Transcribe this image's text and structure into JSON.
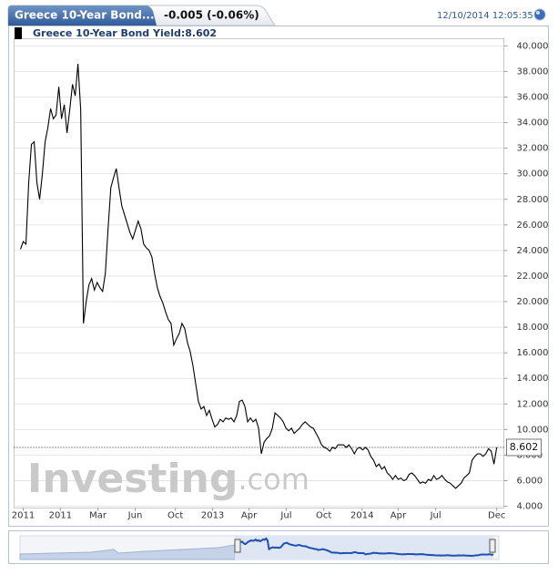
{
  "header": {
    "title": "Greece 10-Year Bond...",
    "change": "-0.005 (-0.06%)",
    "timestamp": "12/10/2014 12:05:35"
  },
  "watermark": {
    "brand": "Investing",
    "suffix": ".com"
  },
  "chart_data": {
    "type": "line",
    "series": [
      {
        "name": "Greece 10-Year Bond Yield:8.602",
        "color": "#000000",
        "values": [
          24.1,
          24.7,
          24.5,
          29.3,
          32.3,
          32.5,
          29.3,
          28.0,
          30.0,
          32.5,
          33.6,
          35.1,
          34.3,
          34.6,
          36.8,
          34.3,
          35.4,
          33.2,
          35.0,
          37.0,
          36.1,
          38.6,
          35.0,
          18.3,
          20.0,
          21.3,
          21.8,
          20.9,
          21.5,
          21.1,
          20.8,
          22.2,
          25.7,
          28.9,
          29.7,
          30.4,
          28.9,
          27.5,
          26.8,
          26.1,
          25.4,
          24.9,
          25.6,
          26.3,
          25.7,
          24.5,
          24.2,
          24.0,
          23.5,
          22.2,
          21.1,
          20.4,
          19.9,
          19.2,
          18.6,
          18.3,
          16.6,
          17.1,
          17.5,
          18.3,
          17.9,
          16.8,
          16.1,
          15.0,
          13.6,
          12.2,
          11.6,
          11.8,
          11.1,
          11.5,
          10.8,
          10.2,
          10.4,
          10.8,
          10.6,
          10.9,
          10.8,
          10.9,
          10.6,
          11.1,
          12.2,
          12.3,
          11.8,
          10.6,
          10.9,
          10.6,
          10.8,
          10.1,
          8.1,
          9.0,
          9.3,
          9.5,
          10.1,
          11.3,
          11.1,
          10.9,
          10.6,
          10.1,
          9.9,
          10.1,
          9.7,
          9.9,
          10.1,
          10.4,
          10.6,
          10.4,
          10.2,
          10.1,
          9.7,
          9.3,
          8.8,
          8.6,
          8.5,
          8.3,
          8.6,
          8.5,
          8.8,
          8.8,
          8.8,
          8.6,
          8.8,
          8.5,
          8.1,
          8.5,
          8.6,
          8.4,
          8.6,
          8.4,
          7.9,
          7.6,
          7.1,
          7.3,
          6.9,
          7.1,
          6.6,
          6.4,
          6.1,
          6.4,
          6.1,
          6.2,
          6.0,
          6.1,
          6.5,
          6.6,
          6.4,
          6.1,
          5.8,
          5.9,
          5.8,
          6.1,
          6.0,
          6.4,
          6.1,
          6.2,
          6.4,
          6.1,
          5.9,
          5.8,
          5.6,
          5.4,
          5.6,
          5.8,
          6.2,
          6.4,
          6.6,
          7.6,
          7.9,
          8.1,
          8.1,
          7.9,
          8.1,
          8.5,
          8.3,
          7.3,
          8.602
        ]
      }
    ],
    "xlim": [
      -2.33,
      176.6
    ],
    "xticks": [
      {
        "value": 1,
        "label": "2011"
      },
      {
        "value": 14.6,
        "label": "2011"
      },
      {
        "value": 28.3,
        "label": "Mar"
      },
      {
        "value": 41.9,
        "label": "Jun"
      },
      {
        "value": 56.6,
        "label": "Oct"
      },
      {
        "value": 70.2,
        "label": "2013"
      },
      {
        "value": 83.5,
        "label": "Apr"
      },
      {
        "value": 97.1,
        "label": "Jul"
      },
      {
        "value": 110.8,
        "label": "Oct"
      },
      {
        "value": 124.8,
        "label": "2014"
      },
      {
        "value": 138.0,
        "label": "Apr"
      },
      {
        "value": 151.7,
        "label": "Jul"
      },
      {
        "value": 174,
        "label": "Dec"
      }
    ],
    "ylim": [
      3.86,
      40.56
    ],
    "yticks": [
      {
        "value": 4,
        "label": "4.000"
      },
      {
        "value": 6,
        "label": "6.000"
      },
      {
        "value": 8,
        "label": "8.000"
      },
      {
        "value": 10,
        "label": "10.000"
      },
      {
        "value": 12,
        "label": "12.000"
      },
      {
        "value": 14,
        "label": "14.000"
      },
      {
        "value": 16,
        "label": "16.000"
      },
      {
        "value": 18,
        "label": "18.000"
      },
      {
        "value": 20,
        "label": "20.000"
      },
      {
        "value": 22,
        "label": "22.000"
      },
      {
        "value": 24,
        "label": "24.000"
      },
      {
        "value": 26,
        "label": "26.000"
      },
      {
        "value": 28,
        "label": "28.000"
      },
      {
        "value": 30,
        "label": "30.000"
      },
      {
        "value": 32,
        "label": "32.000"
      },
      {
        "value": 34,
        "label": "34.000"
      },
      {
        "value": 36,
        "label": "36.000"
      },
      {
        "value": 38,
        "label": "38.000"
      },
      {
        "value": 40,
        "label": "40.000"
      }
    ],
    "grid": true
  }
}
